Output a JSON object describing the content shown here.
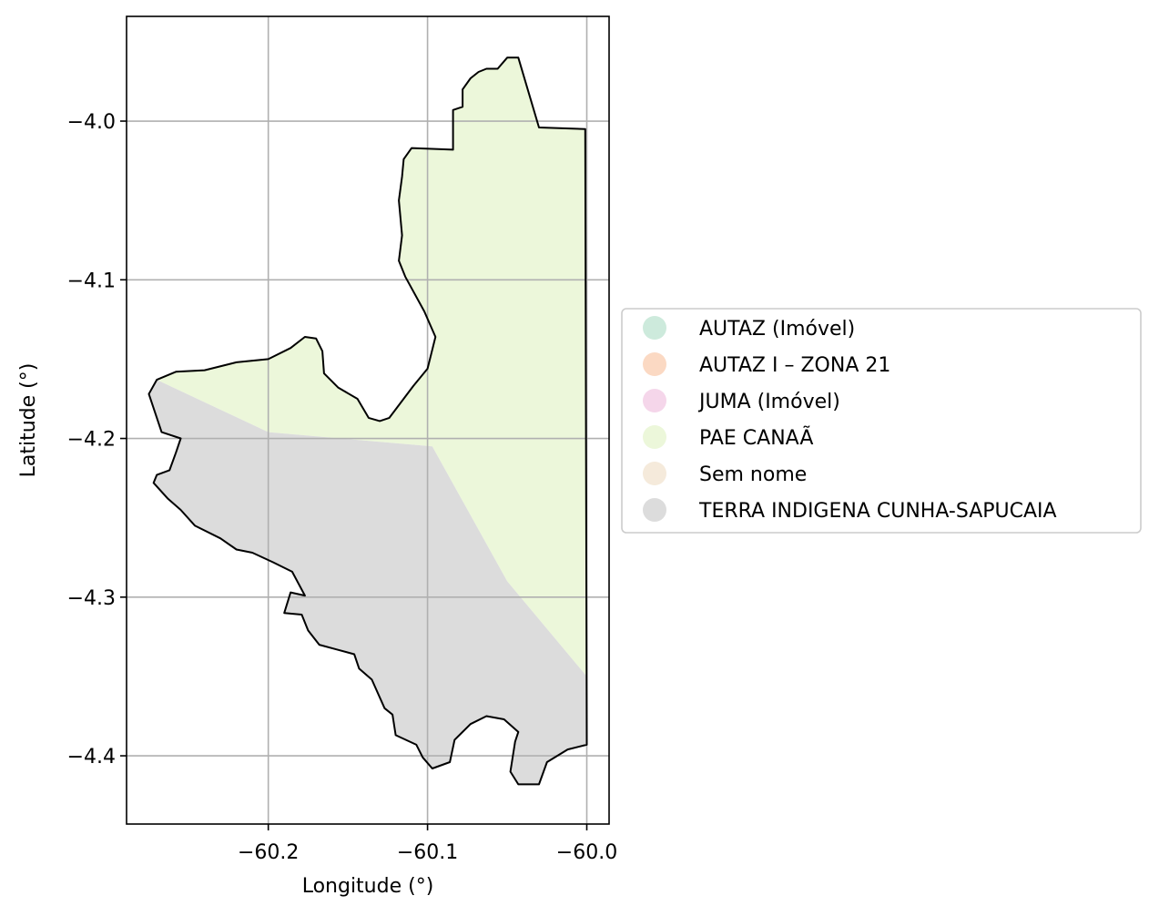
{
  "chart_data": {
    "type": "map",
    "xlabel": "Longitude (°)",
    "ylabel": "Latitude (°)",
    "xlim": [
      -60.289,
      -59.986
    ],
    "ylim": [
      -4.443,
      -3.934
    ],
    "xticks": [
      -60.2,
      -60.1,
      -60.0
    ],
    "xtick_labels": [
      "−60.2",
      "−60.1",
      "−60.0"
    ],
    "yticks": [
      -4.0,
      -4.1,
      -4.2,
      -4.3,
      -4.4
    ],
    "ytick_labels": [
      "−4.0",
      "−4.1",
      "−4.2",
      "−4.3",
      "−4.4"
    ],
    "grid": true,
    "legend_position": "right",
    "legend": [
      {
        "label": "AUTAZ (Imóvel)",
        "color": "#cdeadc"
      },
      {
        "label": "AUTAZ I – ZONA 21",
        "color": "#fbd9c3"
      },
      {
        "label": "JUMA (Imóvel)",
        "color": "#f5d6ea"
      },
      {
        "label": "PAE CANAÃ",
        "color": "#ecf7da"
      },
      {
        "label": "Sem nome",
        "color": "#f5eadb"
      },
      {
        "label": "TERRA INDIGENA CUNHA-SAPUCAIA",
        "color": "#dcdcdc"
      }
    ],
    "regions": [
      {
        "name": "PAE CANAÃ",
        "color": "#ecf7da",
        "coords": [
          [
            -60.27,
            -4.163
          ],
          [
            -60.258,
            -4.158
          ],
          [
            -60.24,
            -4.157
          ],
          [
            -60.22,
            -4.152
          ],
          [
            -60.2,
            -4.15
          ],
          [
            -60.186,
            -4.143
          ],
          [
            -60.177,
            -4.136
          ],
          [
            -60.17,
            -4.137
          ],
          [
            -60.166,
            -4.145
          ],
          [
            -60.165,
            -4.159
          ],
          [
            -60.156,
            -4.168
          ],
          [
            -60.144,
            -4.175
          ],
          [
            -60.137,
            -4.187
          ],
          [
            -60.13,
            -4.189
          ],
          [
            -60.124,
            -4.187
          ],
          [
            -60.109,
            -4.167
          ],
          [
            -60.1,
            -4.156
          ],
          [
            -60.095,
            -4.136
          ],
          [
            -60.102,
            -4.12
          ],
          [
            -60.114,
            -4.098
          ],
          [
            -60.118,
            -4.088
          ],
          [
            -60.116,
            -4.072
          ],
          [
            -60.118,
            -4.05
          ],
          [
            -60.116,
            -4.035
          ],
          [
            -60.115,
            -4.024
          ],
          [
            -60.11,
            -4.017
          ],
          [
            -60.084,
            -4.018
          ],
          [
            -60.084,
            -3.993
          ],
          [
            -60.078,
            -3.991
          ],
          [
            -60.078,
            -3.98
          ],
          [
            -60.073,
            -3.973
          ],
          [
            -60.068,
            -3.969
          ],
          [
            -60.063,
            -3.967
          ],
          [
            -60.056,
            -3.967
          ],
          [
            -60.05,
            -3.96
          ],
          [
            -60.043,
            -3.96
          ],
          [
            -60.03,
            -4.004
          ],
          [
            -60.001,
            -4.005
          ],
          [
            -60.0,
            -4.35
          ],
          [
            -60.05,
            -4.29
          ],
          [
            -60.097,
            -4.205
          ],
          [
            -60.2,
            -4.196
          ],
          [
            -60.27,
            -4.163
          ]
        ]
      },
      {
        "name": "TERRA INDIGENA CUNHA-SAPUCAIA",
        "color": "#dcdcdc",
        "coords": [
          [
            -60.27,
            -4.163
          ],
          [
            -60.2,
            -4.196
          ],
          [
            -60.097,
            -4.205
          ],
          [
            -60.05,
            -4.29
          ],
          [
            -60.0,
            -4.35
          ],
          [
            -60.0,
            -4.393
          ],
          [
            -60.012,
            -4.396
          ],
          [
            -60.025,
            -4.404
          ],
          [
            -60.03,
            -4.418
          ],
          [
            -60.043,
            -4.418
          ],
          [
            -60.048,
            -4.41
          ],
          [
            -60.045,
            -4.391
          ],
          [
            -60.043,
            -4.385
          ],
          [
            -60.052,
            -4.377
          ],
          [
            -60.063,
            -4.375
          ],
          [
            -60.073,
            -4.38
          ],
          [
            -60.083,
            -4.39
          ],
          [
            -60.086,
            -4.404
          ],
          [
            -60.097,
            -4.408
          ],
          [
            -60.103,
            -4.401
          ],
          [
            -60.107,
            -4.393
          ],
          [
            -60.12,
            -4.387
          ],
          [
            -60.122,
            -4.374
          ],
          [
            -60.127,
            -4.37
          ],
          [
            -60.135,
            -4.352
          ],
          [
            -60.143,
            -4.345
          ],
          [
            -60.146,
            -4.336
          ],
          [
            -60.157,
            -4.333
          ],
          [
            -60.168,
            -4.33
          ],
          [
            -60.175,
            -4.321
          ],
          [
            -60.179,
            -4.311
          ],
          [
            -60.19,
            -4.31
          ],
          [
            -60.186,
            -4.297
          ],
          [
            -60.177,
            -4.299
          ],
          [
            -60.185,
            -4.284
          ],
          [
            -60.197,
            -4.278
          ],
          [
            -60.21,
            -4.272
          ],
          [
            -60.22,
            -4.27
          ],
          [
            -60.23,
            -4.263
          ],
          [
            -60.246,
            -4.255
          ],
          [
            -60.255,
            -4.245
          ],
          [
            -60.263,
            -4.238
          ],
          [
            -60.272,
            -4.228
          ],
          [
            -60.27,
            -4.223
          ],
          [
            -60.262,
            -4.22
          ],
          [
            -60.258,
            -4.209
          ],
          [
            -60.255,
            -4.2
          ],
          [
            -60.267,
            -4.196
          ],
          [
            -60.275,
            -4.172
          ],
          [
            -60.27,
            -4.163
          ]
        ]
      }
    ],
    "boundary": [
      [
        -60.27,
        -4.163
      ],
      [
        -60.258,
        -4.158
      ],
      [
        -60.24,
        -4.157
      ],
      [
        -60.22,
        -4.152
      ],
      [
        -60.2,
        -4.15
      ],
      [
        -60.186,
        -4.143
      ],
      [
        -60.177,
        -4.136
      ],
      [
        -60.17,
        -4.137
      ],
      [
        -60.166,
        -4.145
      ],
      [
        -60.165,
        -4.159
      ],
      [
        -60.156,
        -4.168
      ],
      [
        -60.144,
        -4.175
      ],
      [
        -60.137,
        -4.187
      ],
      [
        -60.13,
        -4.189
      ],
      [
        -60.124,
        -4.187
      ],
      [
        -60.109,
        -4.167
      ],
      [
        -60.1,
        -4.156
      ],
      [
        -60.095,
        -4.136
      ],
      [
        -60.102,
        -4.12
      ],
      [
        -60.114,
        -4.098
      ],
      [
        -60.118,
        -4.088
      ],
      [
        -60.116,
        -4.072
      ],
      [
        -60.118,
        -4.05
      ],
      [
        -60.116,
        -4.035
      ],
      [
        -60.115,
        -4.024
      ],
      [
        -60.11,
        -4.017
      ],
      [
        -60.084,
        -4.018
      ],
      [
        -60.084,
        -3.993
      ],
      [
        -60.078,
        -3.991
      ],
      [
        -60.078,
        -3.98
      ],
      [
        -60.073,
        -3.973
      ],
      [
        -60.068,
        -3.969
      ],
      [
        -60.063,
        -3.967
      ],
      [
        -60.056,
        -3.967
      ],
      [
        -60.05,
        -3.96
      ],
      [
        -60.043,
        -3.96
      ],
      [
        -60.03,
        -4.004
      ],
      [
        -60.001,
        -4.005
      ],
      [
        -60.0,
        -4.393
      ],
      [
        -60.012,
        -4.396
      ],
      [
        -60.025,
        -4.404
      ],
      [
        -60.03,
        -4.418
      ],
      [
        -60.043,
        -4.418
      ],
      [
        -60.048,
        -4.41
      ],
      [
        -60.045,
        -4.391
      ],
      [
        -60.043,
        -4.385
      ],
      [
        -60.052,
        -4.377
      ],
      [
        -60.063,
        -4.375
      ],
      [
        -60.073,
        -4.38
      ],
      [
        -60.083,
        -4.39
      ],
      [
        -60.086,
        -4.404
      ],
      [
        -60.097,
        -4.408
      ],
      [
        -60.103,
        -4.401
      ],
      [
        -60.107,
        -4.393
      ],
      [
        -60.12,
        -4.387
      ],
      [
        -60.122,
        -4.374
      ],
      [
        -60.127,
        -4.37
      ],
      [
        -60.135,
        -4.352
      ],
      [
        -60.143,
        -4.345
      ],
      [
        -60.146,
        -4.336
      ],
      [
        -60.157,
        -4.333
      ],
      [
        -60.168,
        -4.33
      ],
      [
        -60.175,
        -4.321
      ],
      [
        -60.179,
        -4.311
      ],
      [
        -60.19,
        -4.31
      ],
      [
        -60.186,
        -4.297
      ],
      [
        -60.177,
        -4.299
      ],
      [
        -60.185,
        -4.284
      ],
      [
        -60.197,
        -4.278
      ],
      [
        -60.21,
        -4.272
      ],
      [
        -60.22,
        -4.27
      ],
      [
        -60.23,
        -4.263
      ],
      [
        -60.246,
        -4.255
      ],
      [
        -60.255,
        -4.245
      ],
      [
        -60.263,
        -4.238
      ],
      [
        -60.272,
        -4.228
      ],
      [
        -60.27,
        -4.223
      ],
      [
        -60.262,
        -4.22
      ],
      [
        -60.258,
        -4.209
      ],
      [
        -60.255,
        -4.2
      ],
      [
        -60.267,
        -4.196
      ],
      [
        -60.275,
        -4.172
      ],
      [
        -60.27,
        -4.163
      ]
    ]
  }
}
